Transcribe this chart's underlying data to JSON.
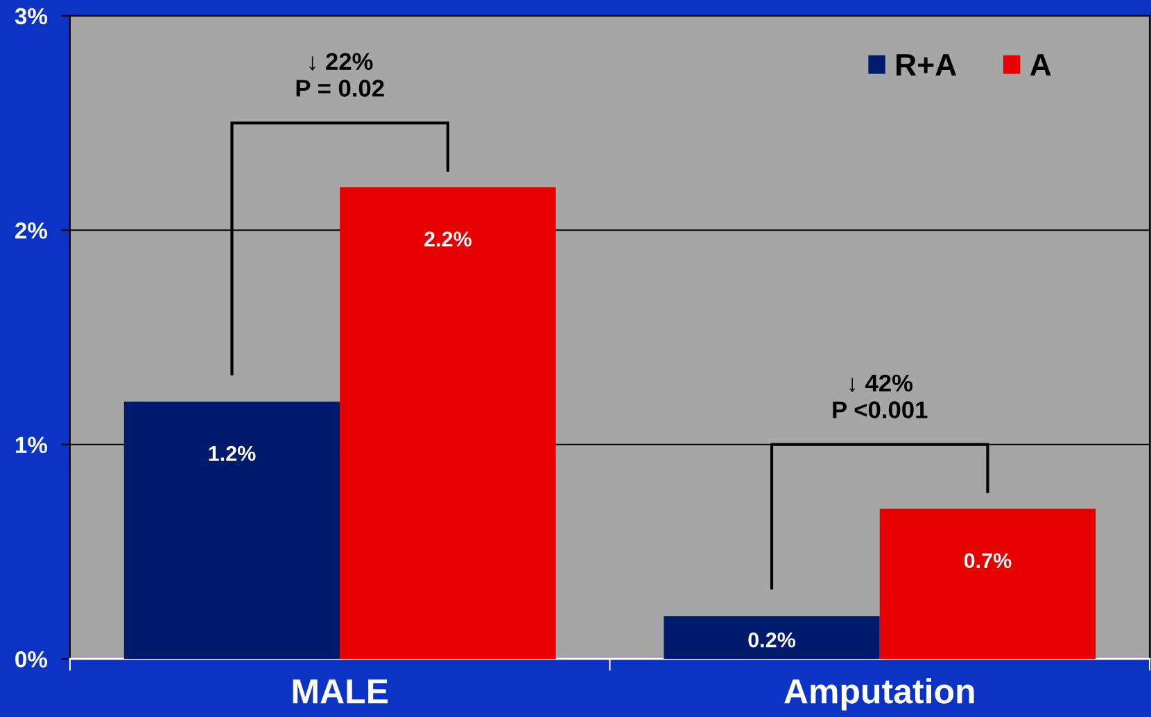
{
  "chart_data": {
    "type": "bar",
    "categories": [
      "MALE",
      "Amputation"
    ],
    "series": [
      {
        "name": "R+A",
        "color": "#001b6b",
        "values": [
          1.2,
          0.2
        ],
        "value_labels": [
          "1.2%",
          "0.2%"
        ]
      },
      {
        "name": "A",
        "color": "#e60000",
        "values": [
          2.2,
          0.7
        ],
        "value_labels": [
          "2.2%",
          "0.7%"
        ]
      }
    ],
    "ylim": [
      0,
      3
    ],
    "yticks": [
      {
        "value": 0,
        "label": "0%"
      },
      {
        "value": 1,
        "label": "1%"
      },
      {
        "value": 2,
        "label": "2%"
      },
      {
        "value": 3,
        "label": "3%"
      }
    ],
    "grid": "y",
    "legend": "top right",
    "annotations": [
      "↓ 22%\nP = 0.02",
      "↓ 42%\nP <0.001"
    ]
  }
}
